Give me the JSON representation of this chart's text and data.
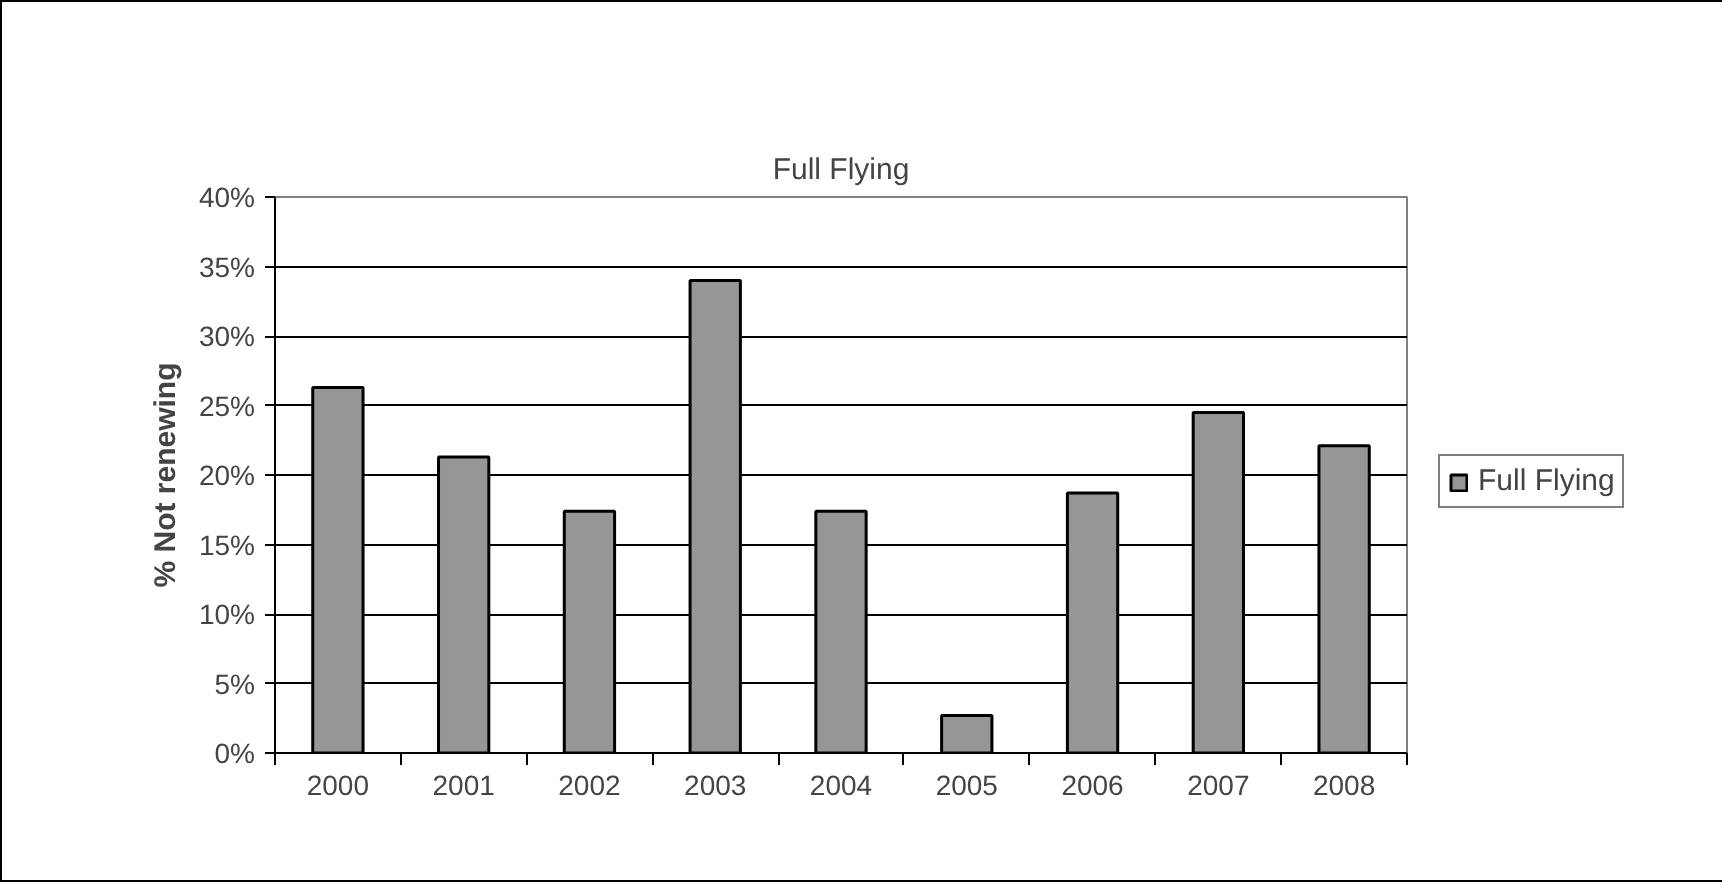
{
  "chart_data": {
    "type": "bar",
    "title": "Full Flying",
    "ylabel": "% Not renewing",
    "categories": [
      "2000",
      "2001",
      "2002",
      "2003",
      "2004",
      "2005",
      "2006",
      "2007",
      "2008"
    ],
    "series": [
      {
        "name": "Full Flying",
        "color": "#969696",
        "values": [
          26.3,
          21.3,
          17.4,
          34.0,
          17.4,
          2.7,
          18.7,
          24.5,
          22.1
        ]
      }
    ],
    "ylim": [
      0,
      40
    ],
    "yticks": [
      {
        "value": 0,
        "label": "0%"
      },
      {
        "value": 5,
        "label": "5%"
      },
      {
        "value": 10,
        "label": "10%"
      },
      {
        "value": 15,
        "label": "15%"
      },
      {
        "value": 20,
        "label": "20%"
      },
      {
        "value": 25,
        "label": "25%"
      },
      {
        "value": 30,
        "label": "30%"
      },
      {
        "value": 35,
        "label": "35%"
      },
      {
        "value": 40,
        "label": "40%"
      }
    ],
    "grid": "y",
    "legend": "right"
  }
}
